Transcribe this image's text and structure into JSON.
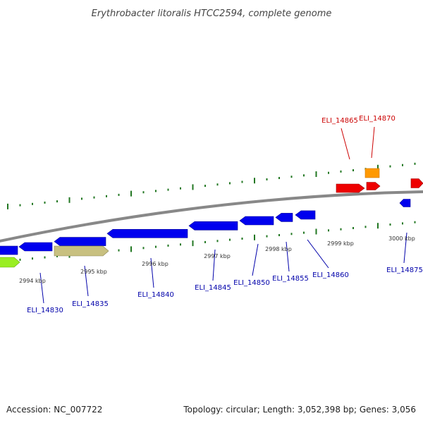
{
  "title": "Erythrobacter litoralis HTCC2594, complete genome",
  "footer": {
    "accession": "Accession: NC_007722",
    "summary": "Topology: circular; Length: 3,052,398 bp; Genes: 3,056"
  },
  "colors": {
    "forward_gene": "#0000ee",
    "reverse_gene": "#0000ee",
    "red_gene": "#ee0000",
    "orange_gene": "#ff9900",
    "olive_gene": "#c8c080",
    "green_gene": "#99ee22",
    "backbone": "#888888",
    "ticks": "#227722",
    "label_blue": "#0000aa",
    "label_red": "#cc0000"
  },
  "kbp_labels": [
    "2994 kbp",
    "2995 kbp",
    "2996 kbp",
    "2997 kbp",
    "2998 kbp",
    "2999 kbp",
    "3000 kbp"
  ],
  "gene_labels": [
    {
      "text": "ELI_14830",
      "color": "blue"
    },
    {
      "text": "ELI_14835",
      "color": "blue"
    },
    {
      "text": "ELI_14840",
      "color": "blue"
    },
    {
      "text": "ELI_14845",
      "color": "blue"
    },
    {
      "text": "ELI_14850",
      "color": "blue"
    },
    {
      "text": "ELI_14855",
      "color": "blue"
    },
    {
      "text": "ELI_14860",
      "color": "blue"
    },
    {
      "text": "ELI_14875",
      "color": "blue"
    },
    {
      "text": "ELI_14865",
      "color": "red"
    },
    {
      "text": "ELI_14870",
      "color": "red"
    }
  ]
}
